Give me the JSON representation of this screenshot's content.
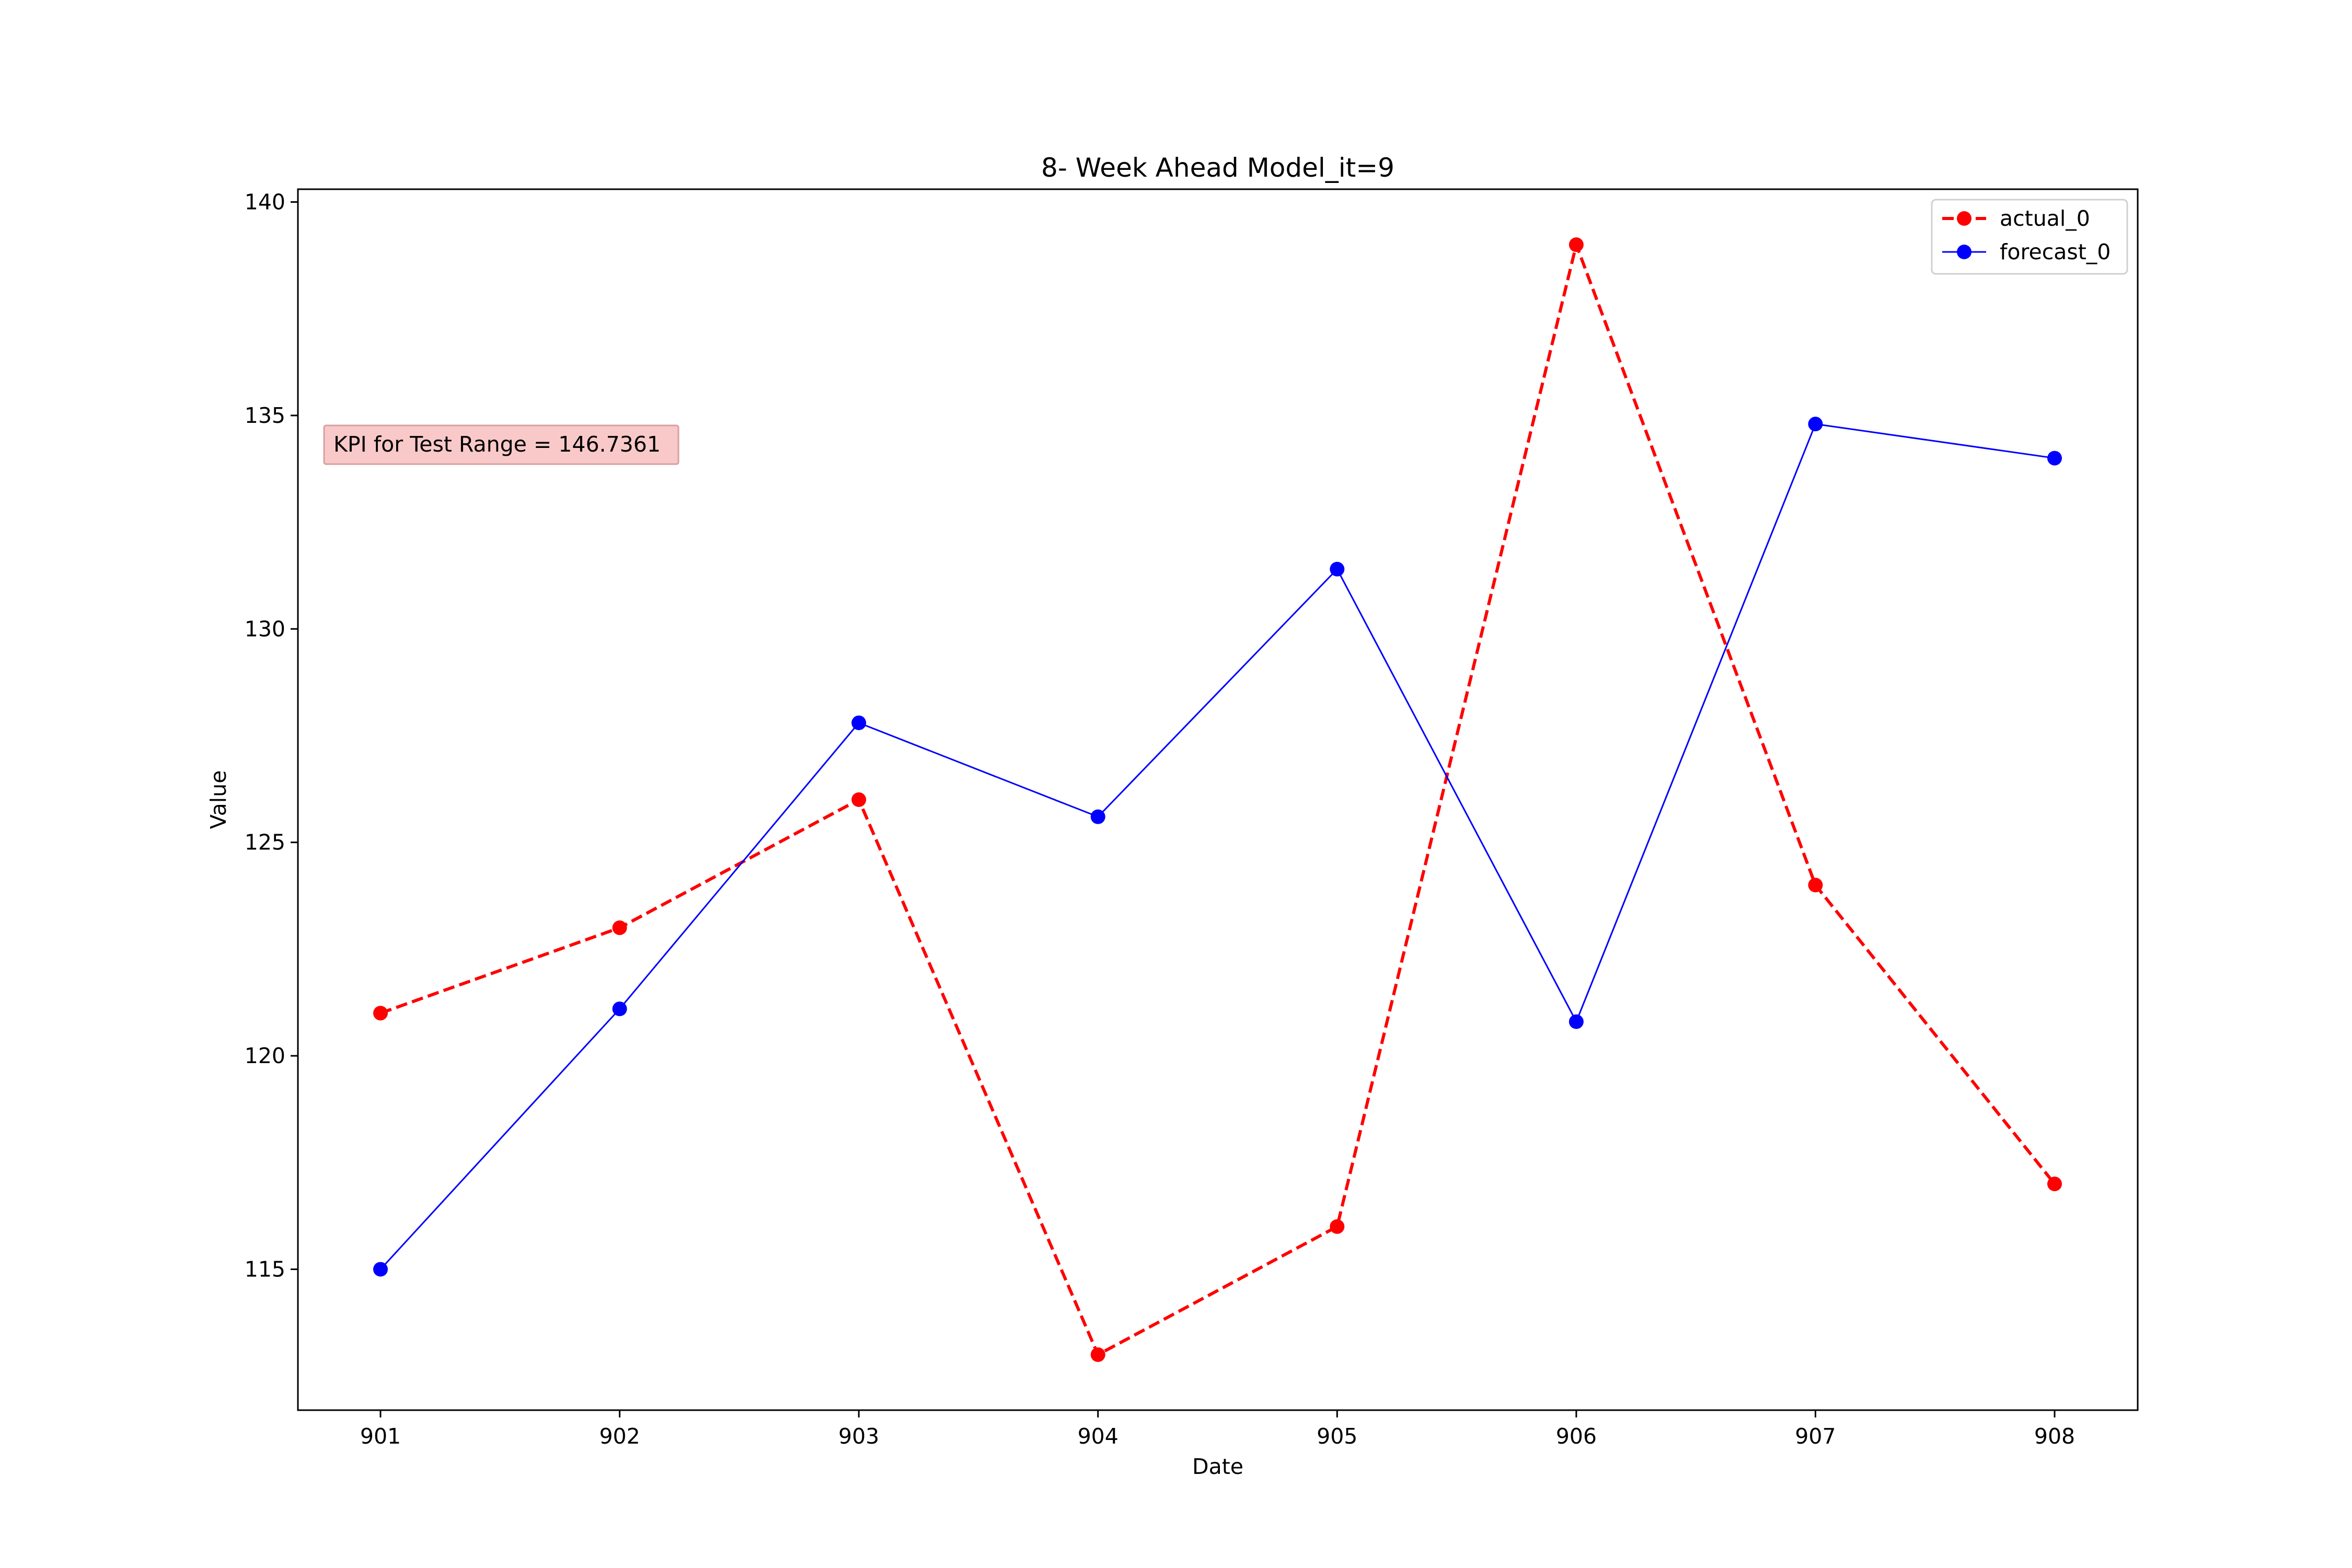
{
  "chart_data": {
    "type": "line",
    "title": "8- Week Ahead Model_it=9",
    "xlabel": "Date",
    "ylabel": "Value",
    "categories": [
      "901",
      "902",
      "903",
      "904",
      "905",
      "906",
      "907",
      "908"
    ],
    "ylim": [
      111.7,
      140.3
    ],
    "yticks": [
      115,
      120,
      125,
      130,
      135,
      140
    ],
    "grid": false,
    "legend_position": "top-right",
    "series": [
      {
        "name": "actual_0",
        "color": "#ff0000",
        "line_style": "dashed",
        "marker": "circle",
        "values": [
          121,
          123,
          126,
          113,
          116,
          139,
          124,
          117
        ]
      },
      {
        "name": "forecast_0",
        "color": "#0000ff",
        "line_style": "solid",
        "marker": "circle",
        "values": [
          115.0,
          121.1,
          127.8,
          125.6,
          131.4,
          120.8,
          134.8,
          134.0
        ]
      }
    ],
    "annotation": {
      "text": "KPI for Test Range = 146.7361",
      "background": "#f9c9c9",
      "border": "#d9a0a0"
    }
  }
}
